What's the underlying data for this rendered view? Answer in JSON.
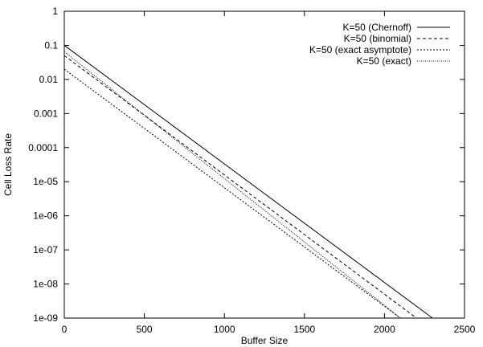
{
  "chart_data": {
    "type": "line",
    "xlabel": "Buffer Size",
    "ylabel": "Cell Loss Rate",
    "xlim": [
      0,
      2500
    ],
    "ylim": [
      1e-09,
      1
    ],
    "yscale": "log",
    "x_ticks": [
      0,
      500,
      1000,
      1500,
      2000,
      2500
    ],
    "x_tick_labels": [
      "0",
      "500",
      "1000",
      "1500",
      "2000",
      "2500"
    ],
    "y_ticks": [
      1,
      0.1,
      0.01,
      0.001,
      0.0001,
      1e-05,
      1e-06,
      1e-07,
      1e-08,
      1e-09
    ],
    "y_tick_labels": [
      "1",
      "0.1",
      "0.01",
      "0.001",
      "0.0001",
      "1e-05",
      "1e-06",
      "1e-07",
      "1e-08",
      "1e-09"
    ],
    "grid": false,
    "legend_position": "top-right",
    "series": [
      {
        "name": "K=50 (Chernoff)",
        "style": "solid",
        "x": [
          0,
          2300
        ],
        "y": [
          0.1,
          1e-09
        ]
      },
      {
        "name": "K=50 (binomial)",
        "style": "dashed",
        "x": [
          0,
          2200
        ],
        "y": [
          0.05,
          1e-09
        ]
      },
      {
        "name": "K=50 (exact asymptote)",
        "style": "dotted",
        "x": [
          0,
          2100
        ],
        "y": [
          0.02,
          1e-09
        ]
      },
      {
        "name": "K=50 (exact)",
        "style": "fine-dotted",
        "x": [
          0,
          2100
        ],
        "y": [
          0.065,
          1e-09
        ]
      }
    ]
  }
}
